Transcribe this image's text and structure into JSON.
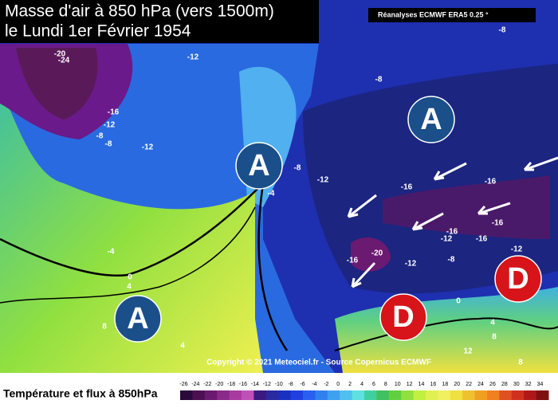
{
  "header": {
    "title_line1": "Masse d'air à 850 hPa (vers 1500m)",
    "title_line2": "le Lundi 1er Février 1954",
    "source": "Réanalyses ECMWF ERA5 0.25 °"
  },
  "map": {
    "pressure_centers": [
      "A",
      "A",
      "A",
      "D",
      "D"
    ],
    "isotherm_labels": [
      "-20",
      "-24",
      "-12",
      "-8",
      "-8",
      "-16",
      "-12",
      "-8",
      "-8",
      "-12",
      "-8",
      "-12",
      "-4",
      "-16",
      "-16",
      "-16",
      "-12",
      "-16",
      "-16",
      "-12",
      "-16",
      "-20",
      "-12",
      "-8",
      "-4",
      "0",
      "4",
      "8",
      "4",
      "0",
      "4",
      "8",
      "12",
      "8"
    ],
    "copyright": "Copyright © 2021 Meteociel.fr - Source Copernicus ECMWF"
  },
  "legend": {
    "title": "Température et flux à 850hPa",
    "ticks": [
      -26,
      -24,
      -22,
      -20,
      -18,
      -16,
      -14,
      -12,
      -10,
      -8,
      -6,
      -4,
      -2,
      0,
      2,
      4,
      6,
      8,
      10,
      12,
      14,
      16,
      18,
      20,
      22,
      24,
      26,
      28,
      30,
      32,
      34
    ],
    "colors": [
      "#2a0a3a",
      "#4a1050",
      "#6a1a70",
      "#8a2a8a",
      "#a83aa0",
      "#c050b8",
      "#3a1a80",
      "#2a2aa0",
      "#1a30c0",
      "#2040e0",
      "#2a60f0",
      "#3080f0",
      "#40a0f0",
      "#50c0f0",
      "#60e0e0",
      "#40d0a0",
      "#40c060",
      "#60d040",
      "#90e040",
      "#c0f040",
      "#e0f050",
      "#f0f060",
      "#f0e040",
      "#f0c030",
      "#f0a020",
      "#f08020",
      "#e05020",
      "#d03020",
      "#b01818",
      "#801010"
    ]
  }
}
